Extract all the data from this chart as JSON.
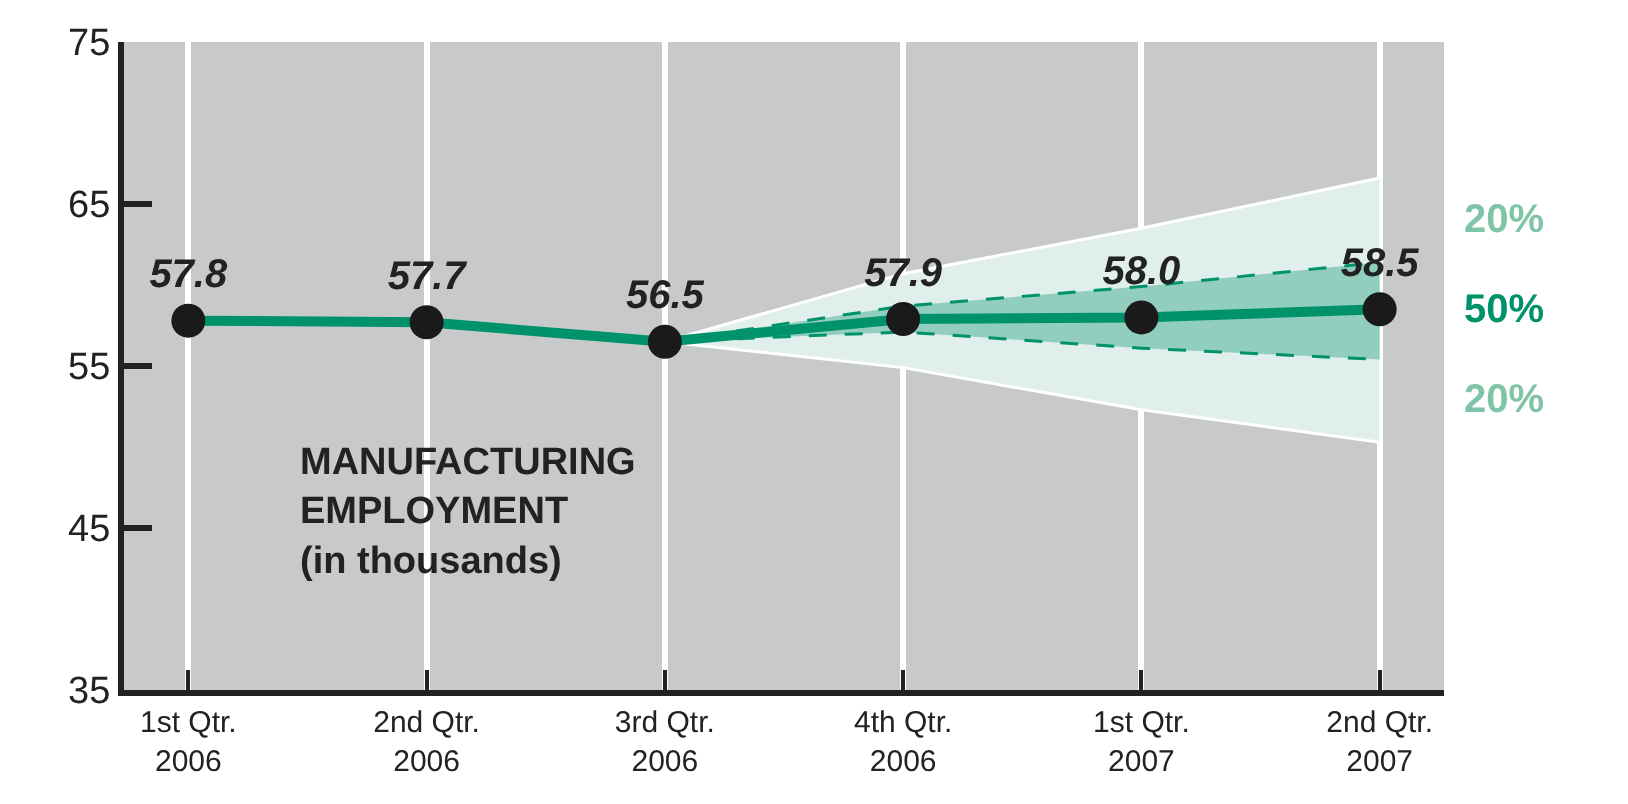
{
  "chart_data": {
    "type": "line",
    "categories": [
      "1st Qtr.\n2006",
      "2nd Qtr.\n2006",
      "3rd Qtr.\n2006",
      "4th Qtr.\n2006",
      "1st Qtr.\n2007",
      "2nd Qtr.\n2007"
    ],
    "series": [
      {
        "color": "#00936b",
        "values": [
          57.8,
          57.7,
          56.5,
          57.9,
          58.0,
          58.5
        ],
        "value_labels": [
          "57.8",
          "57.7",
          "56.5",
          "57.9",
          "58.0",
          "58.5"
        ],
        "lower": [
          null,
          null,
          56.5,
          57.1,
          56.1,
          55.4
        ],
        "upper": [
          null,
          null,
          56.5,
          58.7,
          59.9,
          61.4
        ]
      },
      {
        "color": "#ffffff",
        "marker": "none",
        "values": [
          null,
          null,
          56.5,
          60.7,
          63.5,
          66.6
        ]
      },
      {
        "color": "#ffffff",
        "marker": "none",
        "values": [
          null,
          null,
          56.5,
          54.9,
          52.3,
          50.3
        ]
      }
    ],
    "ylim": [
      35,
      75
    ],
    "yticks": [
      35,
      45,
      55,
      65,
      75
    ],
    "grid": "x",
    "marker": "circle",
    "line_style": "solid",
    "annotations": [
      "MANUFACTURING\nEMPLOYMENT\n(in thousands)",
      "20%",
      "50%",
      "20%"
    ]
  }
}
